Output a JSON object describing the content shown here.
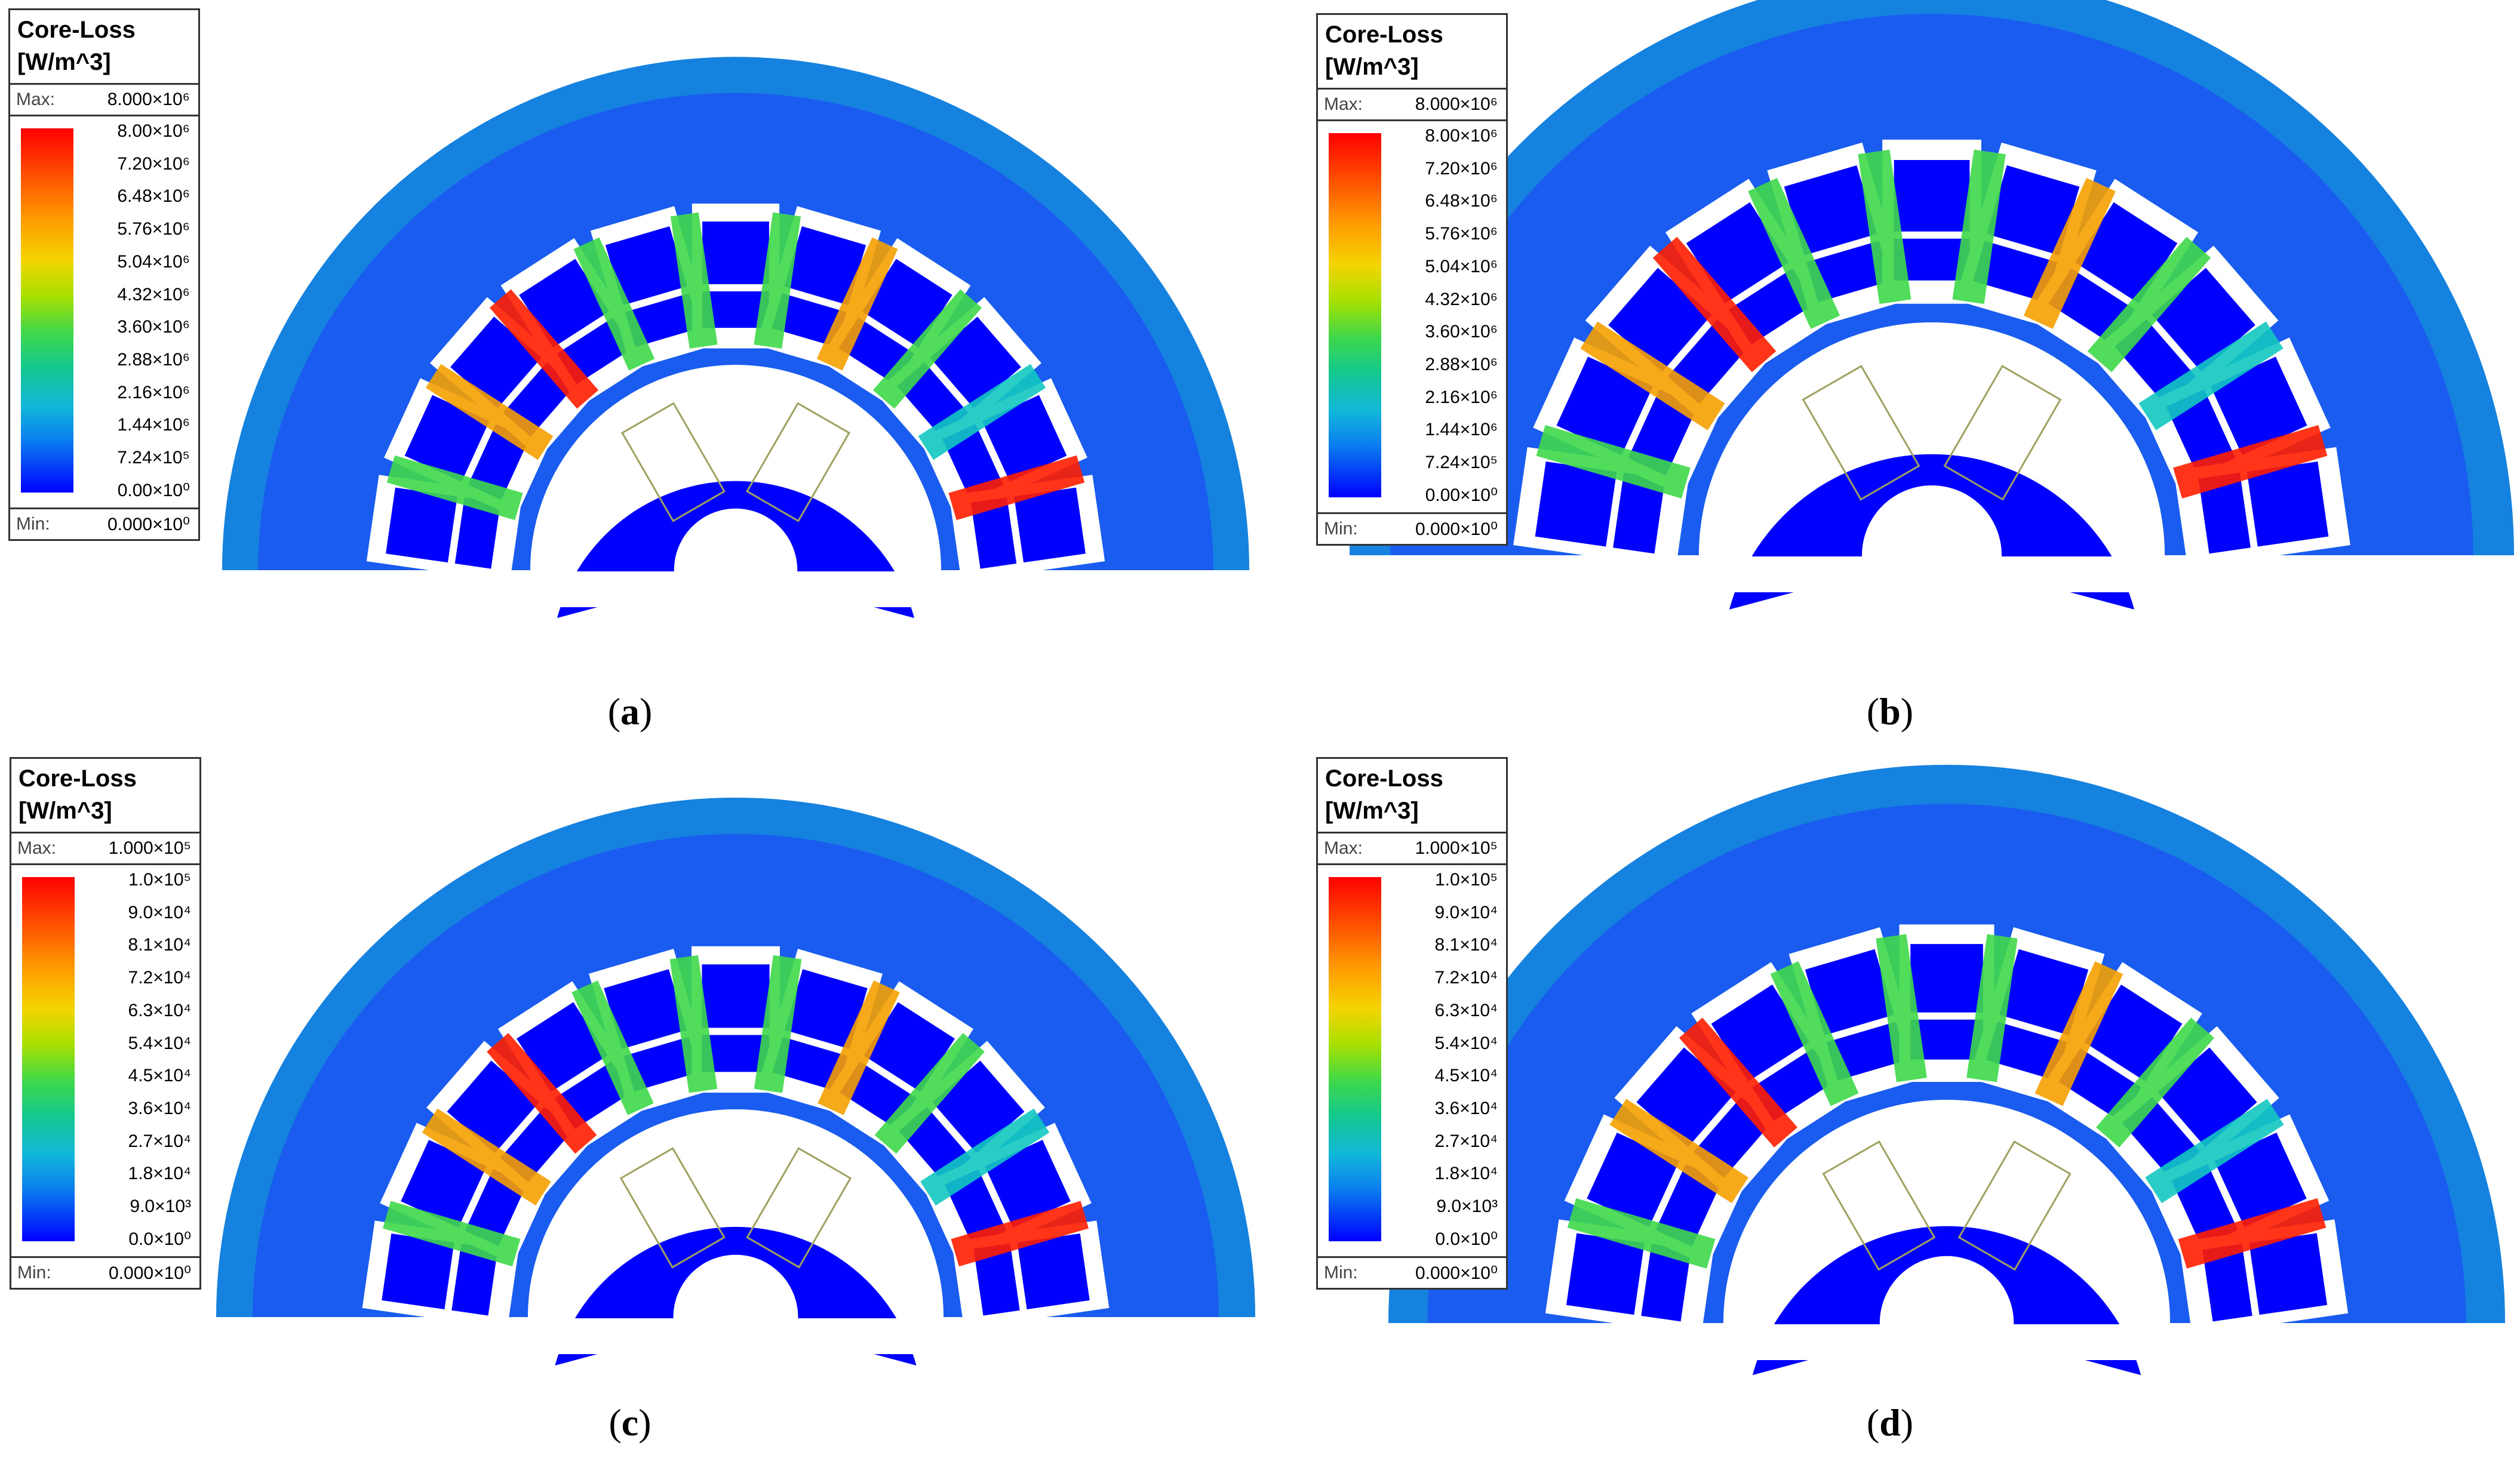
{
  "panels": [
    {
      "caption": {
        "open": "(",
        "letter": "a",
        "close": ")"
      },
      "legend": {
        "title_line1": "Core-Loss",
        "title_line2": "[W/m^3]",
        "max_key": "Max:",
        "max_value": "8.000×10⁶",
        "ticks": [
          "8.00×10⁶",
          "7.20×10⁶",
          "6.48×10⁶",
          "5.76×10⁶",
          "5.04×10⁶",
          "4.32×10⁶",
          "3.60×10⁶",
          "2.88×10⁶",
          "2.16×10⁶",
          "1.44×10⁶",
          "7.24×10⁵",
          "0.00×10⁰"
        ],
        "min_key": "Min:",
        "min_value": "0.000×10⁰"
      }
    },
    {
      "caption": {
        "open": "(",
        "letter": "b",
        "close": ")"
      },
      "legend": {
        "title_line1": "Core-Loss",
        "title_line2": "[W/m^3]",
        "max_key": "Max:",
        "max_value": "8.000×10⁶",
        "ticks": [
          "8.00×10⁶",
          "7.20×10⁶",
          "6.48×10⁶",
          "5.76×10⁶",
          "5.04×10⁶",
          "4.32×10⁶",
          "3.60×10⁶",
          "2.88×10⁶",
          "2.16×10⁶",
          "1.44×10⁶",
          "7.24×10⁵",
          "0.00×10⁰"
        ],
        "min_key": "Min:",
        "min_value": "0.000×10⁰"
      }
    },
    {
      "caption": {
        "open": "(",
        "letter": "c",
        "close": ")"
      },
      "legend": {
        "title_line1": "Core-Loss",
        "title_line2": "[W/m^3]",
        "max_key": "Max:",
        "max_value": "1.000×10⁵",
        "ticks": [
          "1.0×10⁵",
          "9.0×10⁴",
          "8.1×10⁴",
          "7.2×10⁴",
          "6.3×10⁴",
          "5.4×10⁴",
          "4.5×10⁴",
          "3.6×10⁴",
          "2.7×10⁴",
          "1.8×10⁴",
          "9.0×10³",
          "0.0×10⁰"
        ],
        "min_key": "Min:",
        "min_value": "0.000×10⁰"
      }
    },
    {
      "caption": {
        "open": "(",
        "letter": "d",
        "close": ")"
      },
      "legend": {
        "title_line1": "Core-Loss",
        "title_line2": "[W/m^3]",
        "max_key": "Max:",
        "max_value": "1.000×10⁵",
        "ticks": [
          "1.0×10⁵",
          "9.0×10⁴",
          "8.1×10⁴",
          "7.2×10⁴",
          "6.3×10⁴",
          "5.4×10⁴",
          "4.5×10⁴",
          "3.6×10⁴",
          "2.7×10⁴",
          "1.8×10⁴",
          "9.0×10³",
          "0.0×10⁰"
        ],
        "min_key": "Min:",
        "min_value": "0.000×10⁰"
      }
    }
  ],
  "colors": {
    "stator_background": "#1a5cf0",
    "coil": "#0000ff",
    "slot": "#ffffff",
    "hot": "#ff1e00",
    "warm": "#f5a000",
    "mid": "#3fd84a",
    "cool": "#12c8c0"
  }
}
